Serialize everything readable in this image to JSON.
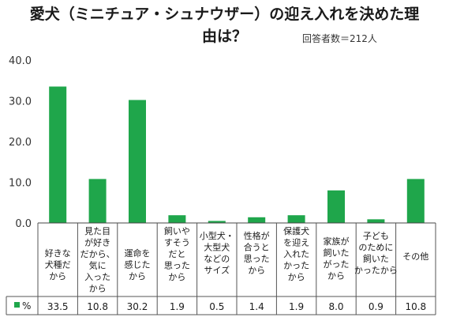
{
  "title_line1": "愛犬（ミニチュア・シュナウザー）の迎え入れを決めた理",
  "title_line2": "由は？",
  "respondents": "回答者数＝212人",
  "chart_data": {
    "type": "bar",
    "title": "愛犬（ミニチュア・シュナウザー）の迎え入れを決めた理由は？",
    "categories": [
      [
        "好きな",
        "犬種だ",
        "から"
      ],
      [
        "見た目",
        "が好き",
        "だから、",
        "気に",
        "入った",
        "から"
      ],
      [
        "運命を",
        "感じた",
        "から"
      ],
      [
        "飼いや",
        "すそう",
        "だと",
        "思った",
        "から"
      ],
      [
        "小型犬・",
        "大型犬",
        "などの",
        "サイズ"
      ],
      [
        "性格が",
        "合うと",
        "思った",
        "から"
      ],
      [
        "保護犬",
        "を迎え",
        "入れた",
        "かった",
        "から"
      ],
      [
        "家族が",
        "飼いた",
        "がった",
        "から"
      ],
      [
        "子ども",
        "のために",
        "飼いた",
        "かったから"
      ],
      [
        "その他"
      ]
    ],
    "series": [
      {
        "name": "%",
        "values": [
          33.5,
          10.8,
          30.2,
          1.9,
          0.5,
          1.4,
          1.9,
          8.0,
          0.9,
          10.8
        ]
      }
    ],
    "value_labels": [
      "33.5",
      "10.8",
      "30.2",
      "1.9",
      "0.5",
      "1.4",
      "1.9",
      "8.0",
      "0.9",
      "10.8"
    ],
    "ylim": [
      0,
      40
    ],
    "yticks": [
      "0.0",
      "10.0",
      "20.0",
      "30.0",
      "40.0"
    ],
    "bar_color": "#1fa64b",
    "grid": false,
    "legend": "bottom-left table"
  }
}
